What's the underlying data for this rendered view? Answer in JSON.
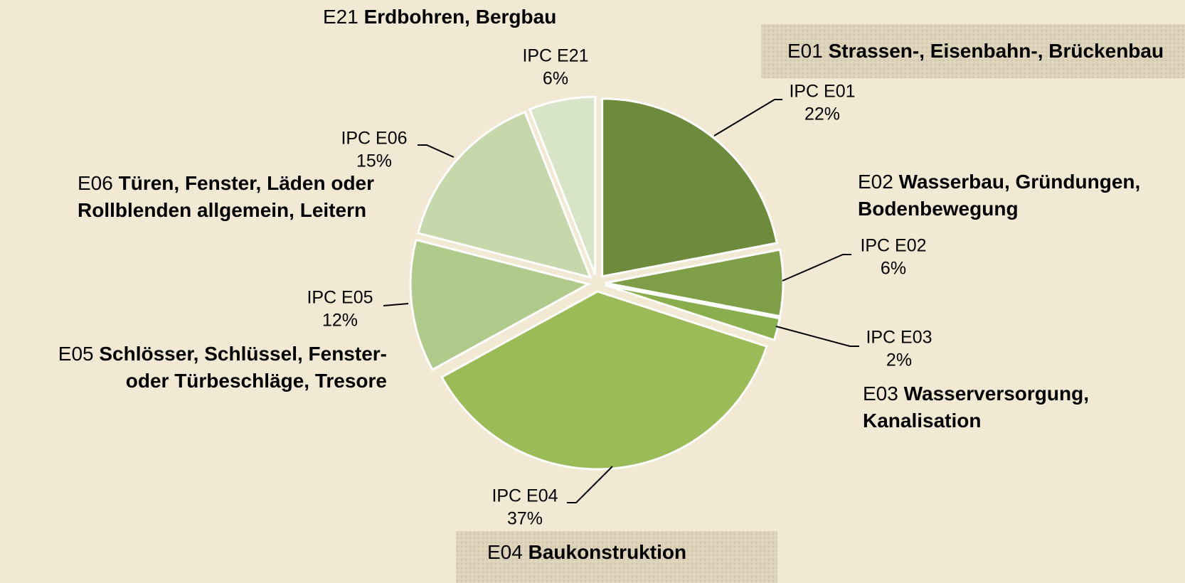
{
  "chart_data": {
    "type": "pie",
    "categories": [
      "IPC E01",
      "IPC E02",
      "IPC E03",
      "IPC E04",
      "IPC E05",
      "IPC E06",
      "IPC E21"
    ],
    "values": [
      22,
      6,
      2,
      37,
      12,
      15,
      6
    ],
    "value_labels": [
      "22%",
      "6%",
      "2%",
      "37%",
      "12%",
      "15%",
      "6%"
    ],
    "colors": [
      "#6e8b3d",
      "#7f9e48",
      "#8aad4e",
      "#9bbb59",
      "#b0ca8c",
      "#c5d7ab",
      "#d8e4c8"
    ],
    "annotations": [
      {
        "code": "E01",
        "lines": [
          "Strassen-, Eisenbahn-, Brückenbau"
        ]
      },
      {
        "code": "E02",
        "lines": [
          "Wasserbau, Gründungen,",
          "Bodenbewegung"
        ]
      },
      {
        "code": "E03",
        "lines": [
          "Wasserversorgung,",
          "Kanalisation"
        ]
      },
      {
        "code": "E04",
        "lines": [
          "Baukonstruktion"
        ]
      },
      {
        "code": "E05",
        "lines": [
          "Schlösser, Schlüssel, Fenster-",
          "oder Türbeschläge, Tresore"
        ]
      },
      {
        "code": "E06",
        "lines": [
          "Türen, Fenster, Läden oder",
          "Rollblenden allgemein, Leitern"
        ]
      },
      {
        "code": "E21",
        "lines": [
          "Erdbohren, Bergbau"
        ]
      }
    ]
  }
}
